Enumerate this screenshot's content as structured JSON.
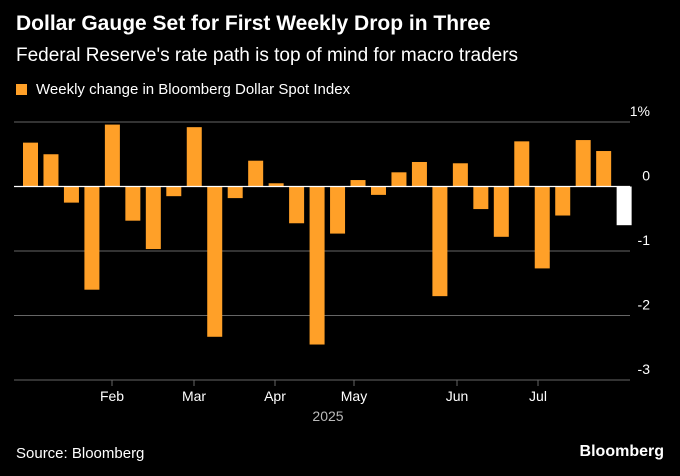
{
  "title": "Dollar Gauge Set for First Weekly Drop in Three",
  "subtitle": "Federal Reserve's rate path is top of mind for macro traders",
  "source": "Source: Bloomberg",
  "brand": "Bloomberg",
  "chart_data": {
    "type": "bar",
    "legend": "Weekly change in Bloomberg Dollar Spot Index",
    "legend_position": "top-left",
    "ylim": [
      -3,
      1
    ],
    "y_ticks": [
      {
        "value": 1,
        "label": "1%"
      },
      {
        "value": 0,
        "label": "0"
      },
      {
        "value": -1,
        "label": "-1"
      },
      {
        "value": -2,
        "label": "-2"
      },
      {
        "value": -3,
        "label": "-3"
      }
    ],
    "x_month_labels": [
      "Feb",
      "Mar",
      "Apr",
      "May",
      "Jun",
      "Jul"
    ],
    "x_year_label": "2025",
    "grid": true,
    "colors": {
      "positive_weeks": "#ffa028",
      "current_week": "#ffffff",
      "grid": "#666666",
      "zero_line": "#ffffff"
    },
    "series": [
      {
        "values": [
          0.68,
          0.5,
          -0.25,
          -1.6,
          0.96,
          -0.53,
          -0.97,
          -0.15,
          0.92,
          -2.33,
          -0.18,
          0.4,
          0.05,
          -0.57,
          -2.45,
          -0.73,
          0.1,
          -0.13,
          0.22,
          0.38,
          -1.7,
          0.36,
          -0.35,
          -0.78,
          0.7,
          -1.27,
          -0.45,
          0.72,
          0.55,
          -0.6
        ],
        "highlight_last": true
      }
    ]
  }
}
